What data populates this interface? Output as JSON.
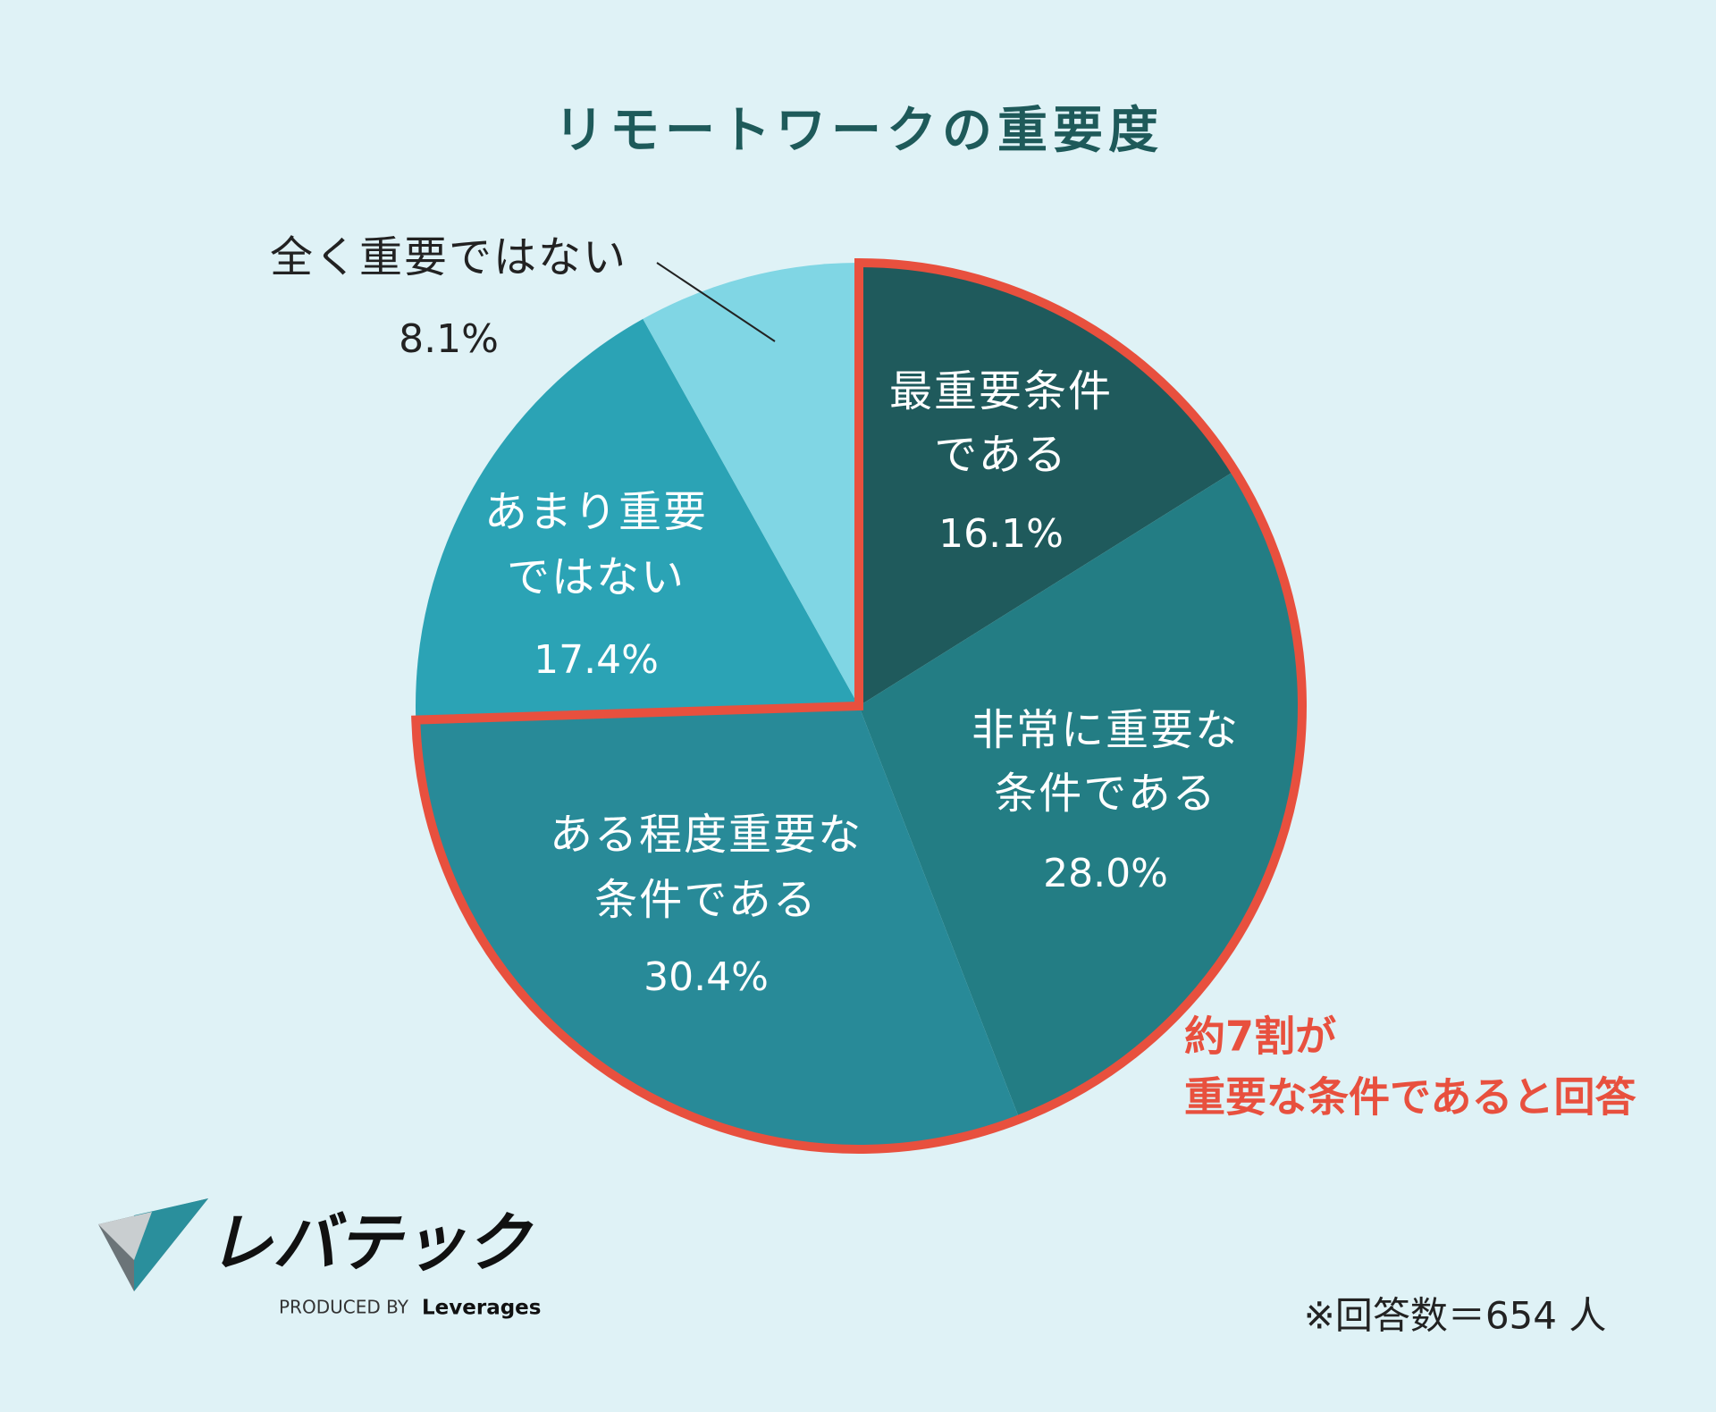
{
  "chart_data": {
    "type": "pie",
    "title": "リモートワークの重要度",
    "categories": [
      [
        "最重要条件",
        "である"
      ],
      [
        "非常に重要な",
        "条件である"
      ],
      [
        "ある程度重要な",
        "条件である"
      ],
      [
        "あまり重要",
        "ではない"
      ],
      [
        "全く重要ではない"
      ]
    ],
    "values": [
      16.1,
      28.0,
      30.4,
      17.4,
      8.1
    ],
    "value_labels": [
      "16.1%",
      "28.0%",
      "30.4%",
      "17.4%",
      "8.1%"
    ],
    "colors": [
      "#1f5a5c",
      "#237d84",
      "#288a98",
      "#2ba3b5",
      "#80d6e4"
    ],
    "highlight_color": "#e8503e",
    "annotation": [
      "約7割が",
      "重要な条件であると回答"
    ],
    "note": "※回答数＝654 人",
    "logo": {
      "name": "レバテック",
      "tagline": [
        "PRODUCED BY",
        "Leverages"
      ]
    }
  }
}
